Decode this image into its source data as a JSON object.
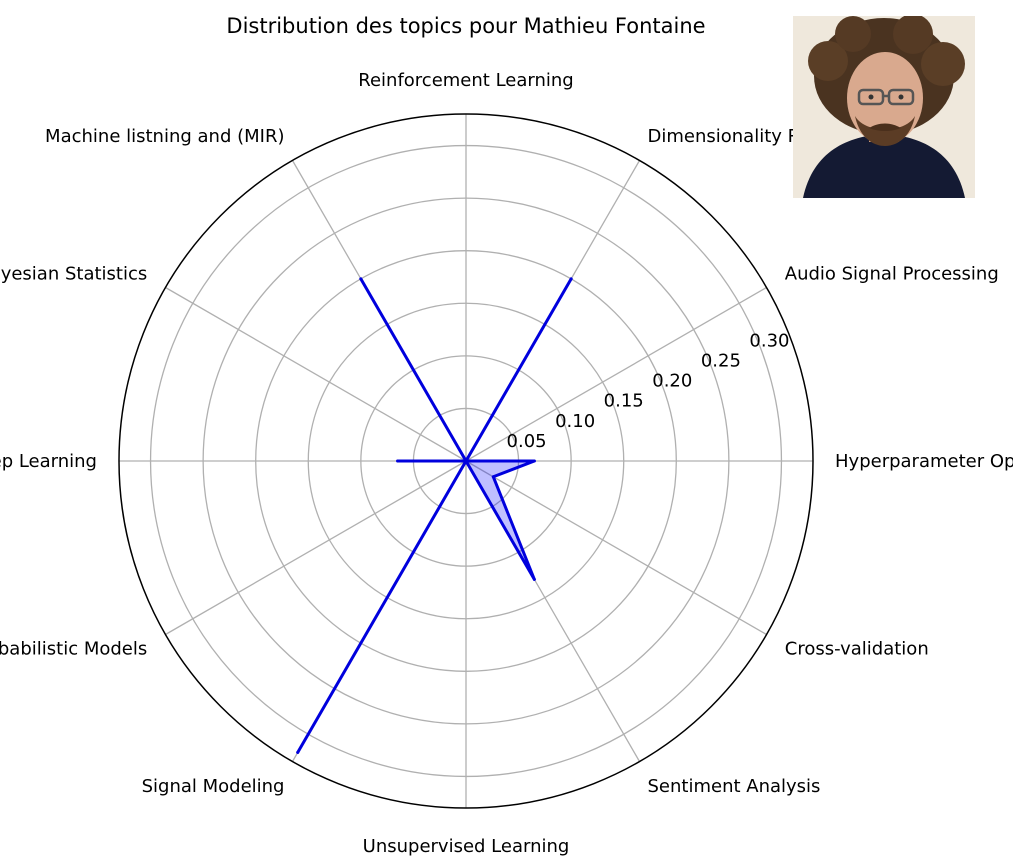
{
  "chart_data": {
    "type": "radar",
    "title": "Distribution des topics pour Mathieu Fontaine",
    "categories": [
      "Hyperparameter Optimization",
      "Audio Signal Processing",
      "Dimensionality Reduction",
      "Reinforcement Learning",
      "Machine listning and (MIR)",
      "Bayesian Statistics",
      "Deep Learning",
      "Probabilistic Models",
      "Signal Modeling",
      "Unsupervised Learning",
      "Sentiment Analysis",
      "Cross-validation"
    ],
    "series": [
      {
        "values": [
          0.065,
          0.0,
          0.2,
          0.0,
          0.2,
          0.0,
          0.065,
          0.0,
          0.32,
          0.0,
          0.13,
          0.03
        ]
      }
    ],
    "rlim": [
      0,
      0.33
    ],
    "rticks": [
      0.05,
      0.1,
      0.15,
      0.2,
      0.25,
      0.3
    ],
    "rtick_labels": [
      "0.05",
      "0.10",
      "0.15",
      "0.20",
      "0.25",
      "0.30"
    ],
    "grid": true,
    "colors": {
      "line": "#0000dd",
      "fill": "#0000ff",
      "grid": "#b0b0b0",
      "frame": "#000000"
    }
  },
  "photo": {
    "icon": "person-portrait-photo"
  }
}
